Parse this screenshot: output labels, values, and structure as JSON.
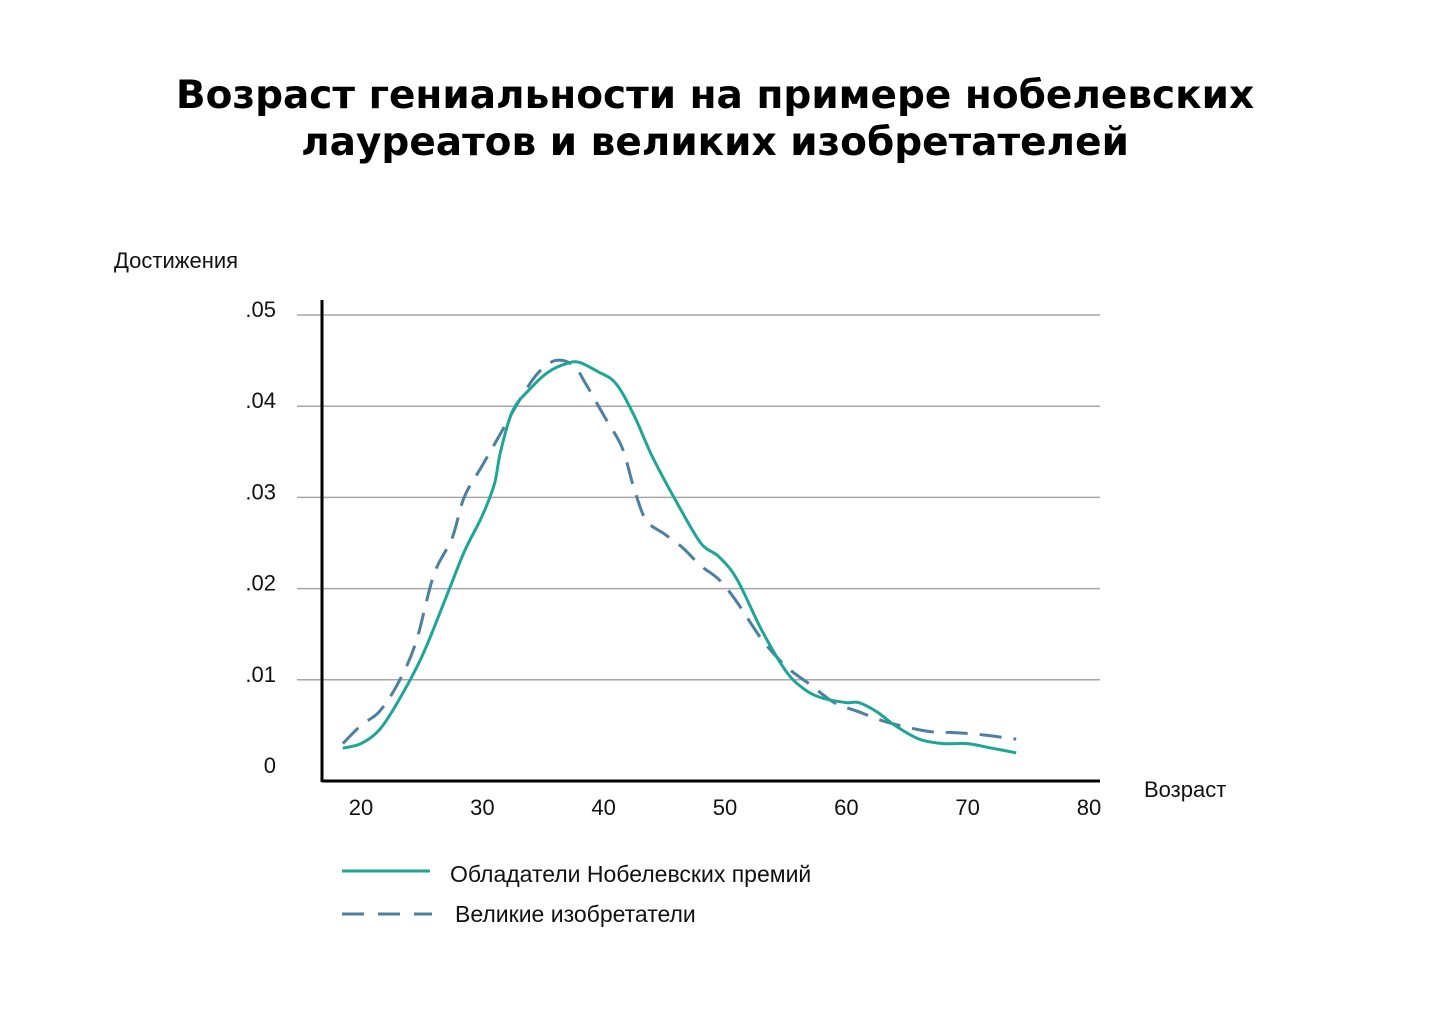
{
  "title": {
    "line1": "Возраст гениальности на примере нобелевских",
    "line2": "лауреатов и великих изобретателей"
  },
  "colors": {
    "nobel": "#1fa595",
    "inventors": "#4d7f9e",
    "grid": "#a6a6a6",
    "axis": "#000000"
  },
  "chart_data": {
    "type": "line",
    "title": "Возраст гениальности на примере нобелевских лауреатов и великих изобретателей",
    "xlabel": "Возраст",
    "ylabel": "Достижения",
    "xlim": [
      16,
      80
    ],
    "ylim": [
      0,
      0.05
    ],
    "xticks": [
      {
        "value": 20,
        "label": "20"
      },
      {
        "value": 30,
        "label": "30"
      },
      {
        "value": 40,
        "label": "40"
      },
      {
        "value": 50,
        "label": "50"
      },
      {
        "value": 60,
        "label": "60"
      },
      {
        "value": 70,
        "label": "70"
      },
      {
        "value": 80,
        "label": "80"
      }
    ],
    "yticks": [
      {
        "value": 0,
        "label": "0"
      },
      {
        "value": 0.01,
        "label": ".01"
      },
      {
        "value": 0.02,
        "label": ".02"
      },
      {
        "value": 0.03,
        "label": ".03"
      },
      {
        "value": 0.04,
        "label": ".04"
      },
      {
        "value": 0.05,
        "label": ".05"
      }
    ],
    "grid": true,
    "legend_position": "bottom-left",
    "series": [
      {
        "name": "Обладатели Нобелевских премий",
        "style": "solid",
        "color": "#1fa595",
        "points": [
          [
            18.5,
            0.0025
          ],
          [
            20,
            0.003
          ],
          [
            21.5,
            0.0045
          ],
          [
            23,
            0.0075
          ],
          [
            25,
            0.0125
          ],
          [
            27,
            0.019
          ],
          [
            28.5,
            0.024
          ],
          [
            30,
            0.028
          ],
          [
            31,
            0.0315
          ],
          [
            31.5,
            0.035
          ],
          [
            32.5,
            0.0395
          ],
          [
            34,
            0.042
          ],
          [
            35.5,
            0.0438
          ],
          [
            37,
            0.0447
          ],
          [
            38,
            0.0448
          ],
          [
            39.5,
            0.0438
          ],
          [
            41,
            0.0425
          ],
          [
            42.5,
            0.039
          ],
          [
            44,
            0.0345
          ],
          [
            46,
            0.0295
          ],
          [
            48,
            0.025
          ],
          [
            49.5,
            0.0235
          ],
          [
            51,
            0.021
          ],
          [
            53,
            0.0155
          ],
          [
            55,
            0.011
          ],
          [
            56.5,
            0.009
          ],
          [
            58,
            0.008
          ],
          [
            60,
            0.0075
          ],
          [
            61,
            0.0075
          ],
          [
            62.5,
            0.0065
          ],
          [
            64,
            0.005
          ],
          [
            66,
            0.0035
          ],
          [
            68,
            0.003
          ],
          [
            70,
            0.003
          ],
          [
            72,
            0.0025
          ],
          [
            74,
            0.002
          ]
        ]
      },
      {
        "name": "Великие изобретатели",
        "style": "dashed",
        "color": "#4d7f9e",
        "points": [
          [
            18.5,
            0.003
          ],
          [
            20,
            0.005
          ],
          [
            21.5,
            0.0065
          ],
          [
            23,
            0.0095
          ],
          [
            24.5,
            0.014
          ],
          [
            26,
            0.0215
          ],
          [
            27.5,
            0.0255
          ],
          [
            28.5,
            0.03
          ],
          [
            30,
            0.0335
          ],
          [
            31.5,
            0.037
          ],
          [
            33,
            0.0405
          ],
          [
            34.5,
            0.0435
          ],
          [
            36,
            0.045
          ],
          [
            37.5,
            0.0445
          ],
          [
            38.5,
            0.0425
          ],
          [
            40,
            0.039
          ],
          [
            41.5,
            0.0355
          ],
          [
            42.5,
            0.031
          ],
          [
            43.5,
            0.0275
          ],
          [
            45,
            0.026
          ],
          [
            46.5,
            0.0245
          ],
          [
            48,
            0.0225
          ],
          [
            49.5,
            0.021
          ],
          [
            51,
            0.0185
          ],
          [
            53,
            0.0145
          ],
          [
            55,
            0.0115
          ],
          [
            57,
            0.0095
          ],
          [
            59,
            0.0075
          ],
          [
            61,
            0.0065
          ],
          [
            63,
            0.0055
          ],
          [
            65,
            0.0048
          ],
          [
            67,
            0.0043
          ],
          [
            69,
            0.0042
          ],
          [
            71,
            0.004
          ],
          [
            74,
            0.0035
          ]
        ]
      }
    ]
  }
}
